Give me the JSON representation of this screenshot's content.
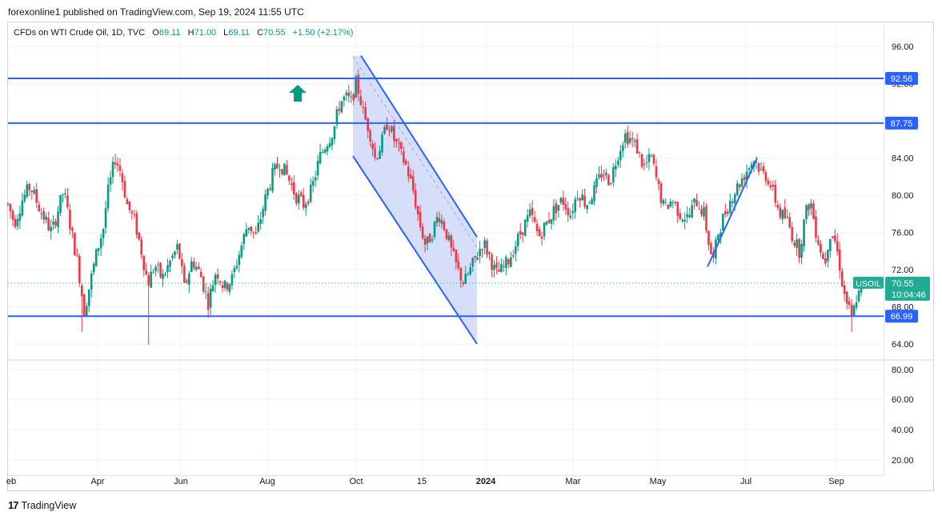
{
  "header": {
    "publisher_line": "forexonline1 published on TradingView.com, Sep 19, 2024 11:55 UTC"
  },
  "legend": {
    "symbol": "CFDs on WTI Crude Oil, 1D, TVC",
    "o_label": "O",
    "o_value": "69.11",
    "h_label": "H",
    "h_value": "71.00",
    "l_label": "L",
    "l_value": "69.11",
    "c_label": "C",
    "c_value": "70.55",
    "change": "+1.50 (+2.17%)"
  },
  "footer": {
    "brand_mark": "17",
    "brand_name": "TradingView"
  },
  "colors": {
    "up": "#089981",
    "down": "#f23645",
    "line": "#2962ff",
    "channel_fill": "#c9d3f7",
    "grid": "#f0f3fa",
    "price_tag": "#22ab94"
  },
  "chart_data": {
    "type": "candlestick",
    "symbol": "USOIL",
    "price_axis": {
      "ticks": [
        96.0,
        92.0,
        88.0,
        84.0,
        80.0,
        76.0,
        72.0,
        68.0,
        64.0
      ],
      "tick_labels": [
        "96.00",
        "92.00",
        "88.00",
        "84.00",
        "80.00",
        "76.00",
        "72.00",
        "68.00",
        "64.00"
      ],
      "range": [
        62.5,
        97.5
      ]
    },
    "volume_axis": {
      "ticks": [
        80,
        60,
        40,
        20
      ],
      "tick_labels": [
        "80.00",
        "60.00",
        "40.00",
        "20.00"
      ]
    },
    "time_axis": {
      "labels": [
        "eb",
        "Apr",
        "Jun",
        "Aug",
        "Oct",
        "15",
        "2024",
        "Mar",
        "May",
        "Jul",
        "Sep"
      ],
      "bold": [
        "2024"
      ]
    },
    "horizontal_levels": [
      {
        "value": 92.56,
        "label": "92.56"
      },
      {
        "value": 87.75,
        "label": "87.75"
      },
      {
        "value": 66.99,
        "label": "66.99"
      }
    ],
    "current_price": {
      "symbol_label": "USOIL",
      "value": "70.55",
      "countdown": "10:04:46",
      "level": 70.55
    },
    "price_path": [
      [
        0,
        79.0
      ],
      [
        8,
        77.0
      ],
      [
        18,
        79.5
      ],
      [
        28,
        81.0
      ],
      [
        40,
        78.5
      ],
      [
        55,
        76.0
      ],
      [
        70,
        80.5
      ],
      [
        80,
        76.0
      ],
      [
        88,
        72.5
      ],
      [
        96,
        67.5
      ],
      [
        102,
        70.0
      ],
      [
        112,
        74.0
      ],
      [
        120,
        76.5
      ],
      [
        125,
        80.0
      ],
      [
        135,
        84.0
      ],
      [
        142,
        82.5
      ],
      [
        150,
        79.0
      ],
      [
        160,
        77.0
      ],
      [
        168,
        74.0
      ],
      [
        176,
        70.5
      ],
      [
        185,
        72.5
      ],
      [
        194,
        71.0
      ],
      [
        205,
        73.0
      ],
      [
        214,
        74.5
      ],
      [
        222,
        70.0
      ],
      [
        232,
        73.0
      ],
      [
        242,
        71.5
      ],
      [
        252,
        68.5
      ],
      [
        262,
        72.0
      ],
      [
        272,
        70.0
      ],
      [
        282,
        71.0
      ],
      [
        292,
        74.0
      ],
      [
        302,
        77.0
      ],
      [
        312,
        75.5
      ],
      [
        322,
        79.0
      ],
      [
        332,
        82.0
      ],
      [
        342,
        83.5
      ],
      [
        352,
        82.0
      ],
      [
        362,
        80.0
      ],
      [
        372,
        79.0
      ],
      [
        382,
        80.5
      ],
      [
        392,
        84.0
      ],
      [
        400,
        85.5
      ],
      [
        410,
        87.0
      ],
      [
        418,
        90.0
      ],
      [
        425,
        90.5
      ],
      [
        432,
        90.0
      ],
      [
        438,
        92.0
      ],
      [
        442,
        91.0
      ],
      [
        448,
        88.5
      ],
      [
        455,
        87.0
      ],
      [
        462,
        84.0
      ],
      [
        470,
        85.5
      ],
      [
        478,
        88.0
      ],
      [
        486,
        86.0
      ],
      [
        494,
        84.5
      ],
      [
        502,
        83.0
      ],
      [
        510,
        80.5
      ],
      [
        518,
        77.0
      ],
      [
        526,
        74.5
      ],
      [
        534,
        76.0
      ],
      [
        542,
        78.0
      ],
      [
        550,
        76.5
      ],
      [
        558,
        74.0
      ],
      [
        566,
        72.0
      ],
      [
        574,
        70.5
      ],
      [
        582,
        72.0
      ],
      [
        590,
        73.5
      ],
      [
        598,
        75.0
      ],
      [
        606,
        73.5
      ],
      [
        614,
        71.5
      ],
      [
        622,
        72.0
      ],
      [
        630,
        73.0
      ],
      [
        638,
        74.5
      ],
      [
        648,
        76.5
      ],
      [
        658,
        78.0
      ],
      [
        668,
        75.5
      ],
      [
        678,
        77.0
      ],
      [
        688,
        78.5
      ],
      [
        698,
        79.5
      ],
      [
        708,
        78.0
      ],
      [
        718,
        80.5
      ],
      [
        728,
        79.0
      ],
      [
        738,
        80.5
      ],
      [
        748,
        82.5
      ],
      [
        758,
        81.5
      ],
      [
        766,
        84.0
      ],
      [
        776,
        86.5
      ],
      [
        784,
        86.0
      ],
      [
        792,
        85.0
      ],
      [
        800,
        83.0
      ],
      [
        810,
        84.0
      ],
      [
        818,
        81.0
      ],
      [
        826,
        78.5
      ],
      [
        836,
        79.5
      ],
      [
        846,
        78.0
      ],
      [
        856,
        77.5
      ],
      [
        866,
        79.5
      ],
      [
        876,
        78.0
      ],
      [
        884,
        74.0
      ],
      [
        888,
        73.0
      ],
      [
        894,
        76.0
      ],
      [
        902,
        78.0
      ],
      [
        912,
        80.0
      ],
      [
        922,
        81.5
      ],
      [
        932,
        83.0
      ],
      [
        940,
        84.0
      ],
      [
        948,
        82.5
      ],
      [
        956,
        82.0
      ],
      [
        964,
        80.0
      ],
      [
        972,
        78.0
      ],
      [
        980,
        77.5
      ],
      [
        988,
        75.5
      ],
      [
        996,
        74.0
      ],
      [
        1004,
        78.0
      ],
      [
        1010,
        79.5
      ],
      [
        1016,
        76.5
      ],
      [
        1022,
        74.5
      ],
      [
        1028,
        72.5
      ],
      [
        1034,
        76.0
      ],
      [
        1040,
        75.5
      ],
      [
        1046,
        73.0
      ],
      [
        1052,
        69.5
      ],
      [
        1058,
        68.0
      ],
      [
        1062,
        66.5
      ],
      [
        1068,
        69.0
      ],
      [
        1074,
        69.5
      ],
      [
        1078,
        70.55
      ]
    ],
    "low_wicks": [
      [
        92,
        65.3
      ],
      [
        176,
        63.9
      ],
      [
        1062,
        65.3
      ]
    ],
    "channel": {
      "upper": [
        [
          10.0,
          95.0
        ],
        [
          155.0,
          75.5
        ]
      ],
      "lower": [
        [
          0.0,
          84.2
        ],
        [
          155.0,
          64.0
        ]
      ],
      "midline": [
        [
          0.0,
          89.6
        ],
        [
          155.0,
          69.6
        ]
      ]
    },
    "trend_line": [
      [
        884,
        72.3
      ],
      [
        946,
        84.0
      ]
    ],
    "annotations": [
      {
        "type": "arrow-up",
        "position": "left of Oct peak"
      }
    ]
  }
}
